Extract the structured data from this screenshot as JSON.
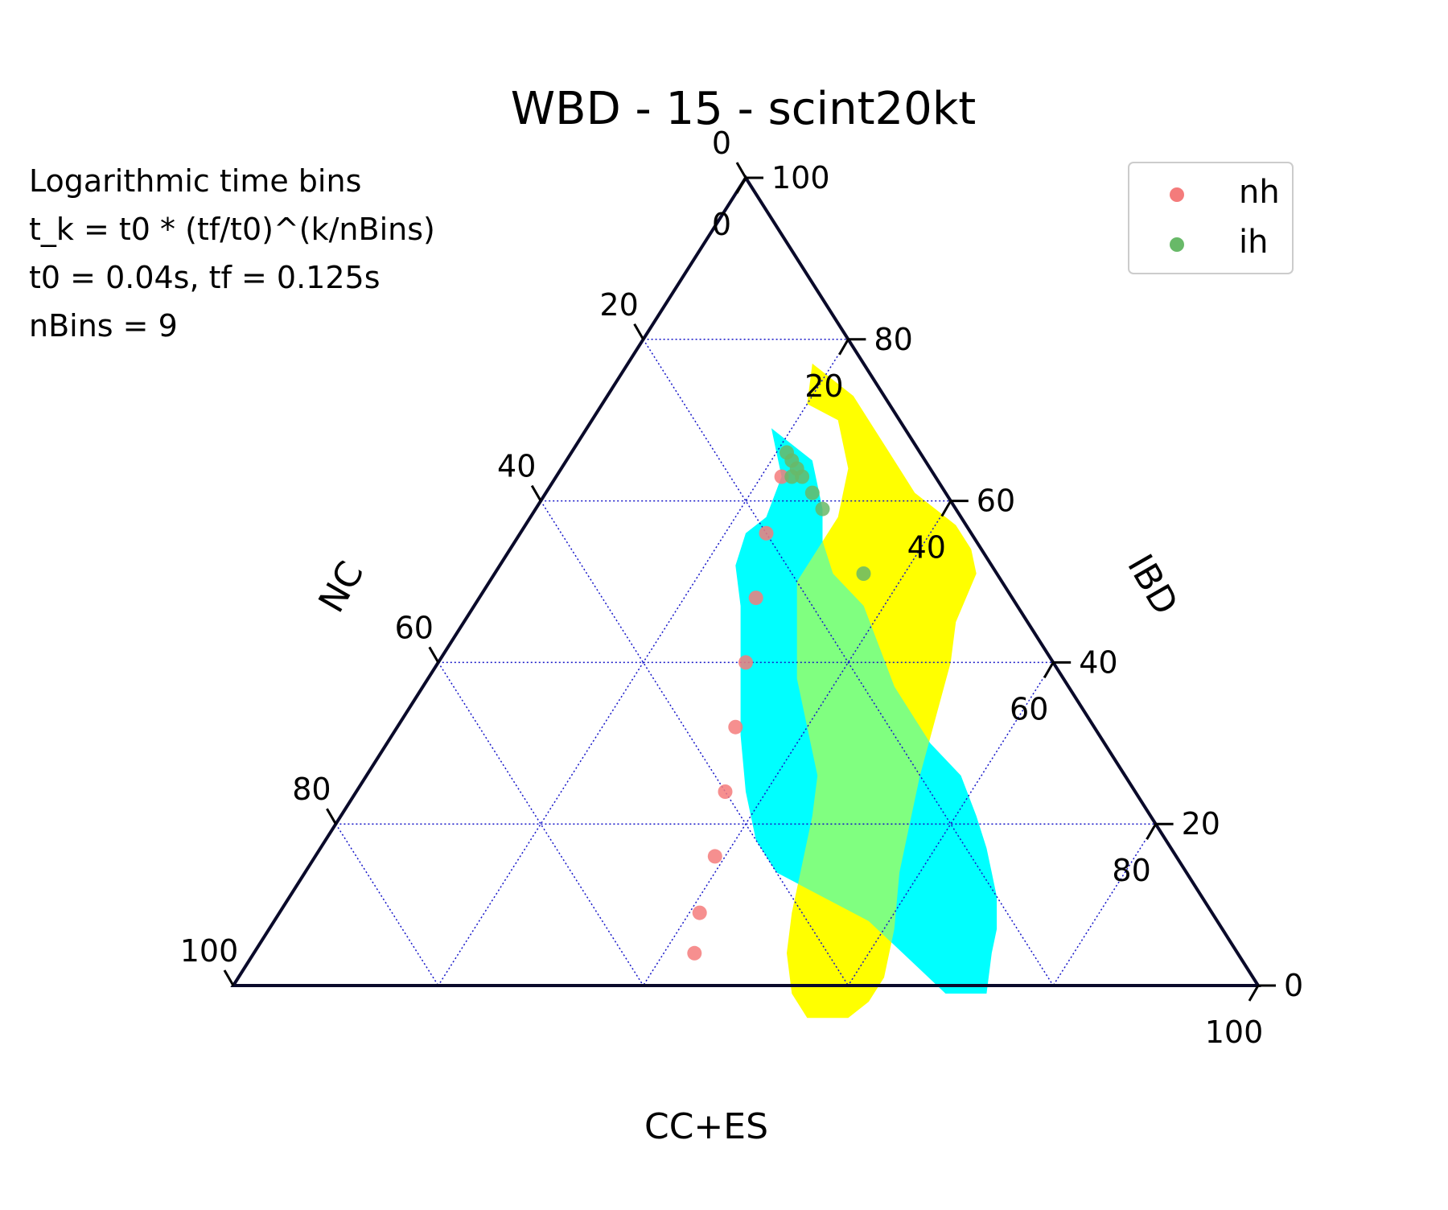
{
  "chart_data": {
    "type": "scatter",
    "subtype": "ternary",
    "title": "WBD - 15 - scint20kt",
    "axes": {
      "bottom": {
        "label": "CC+ES",
        "ticks": [
          "0",
          "20",
          "40",
          "60",
          "80",
          "100"
        ]
      },
      "left": {
        "label": "NC",
        "ticks": [
          "0",
          "20",
          "40",
          "60",
          "80",
          "100"
        ]
      },
      "right": {
        "label": "IBD",
        "ticks": [
          "0",
          "20",
          "40",
          "60",
          "80",
          "100"
        ]
      },
      "range": [
        0,
        100
      ],
      "grid": true,
      "grid_step": 20
    },
    "annotation": [
      "Logarithmic time bins",
      "t_k = t0 * (tf/t0)^(k/nBins)",
      "t0 = 0.04s, tf = 0.125s",
      "nBins = 9"
    ],
    "legend": {
      "position": "top-right",
      "entries": [
        "nh",
        "ih"
      ]
    },
    "colors": {
      "nh": "#f47b7b",
      "ih": "#68b968",
      "nh_region": "#ffff00",
      "ih_region": "#00ffff",
      "overlap_region": "#80ff80",
      "grid": "#1515c8",
      "frame": "#0a0a2a"
    },
    "series": [
      {
        "name": "nh",
        "points": [
          {
            "cc": 22,
            "nc": 15,
            "ibd": 63
          },
          {
            "cc": 24,
            "nc": 20,
            "ibd": 56
          },
          {
            "cc": 27,
            "nc": 25,
            "ibd": 48
          },
          {
            "cc": 30,
            "nc": 30,
            "ibd": 40
          },
          {
            "cc": 33,
            "nc": 35,
            "ibd": 32
          },
          {
            "cc": 36,
            "nc": 40,
            "ibd": 24
          },
          {
            "cc": 39,
            "nc": 45,
            "ibd": 16
          },
          {
            "cc": 41,
            "nc": 50,
            "ibd": 9
          },
          {
            "cc": 43,
            "nc": 53,
            "ibd": 4
          }
        ],
        "region": [
          [
            20,
            8
          ],
          [
            24,
            6
          ],
          [
            28,
            8
          ],
          [
            30,
            12
          ],
          [
            30,
            20
          ],
          [
            33,
            23
          ],
          [
            36,
            26
          ],
          [
            40,
            28
          ],
          [
            44,
            30
          ],
          [
            46,
            33
          ],
          [
            48,
            37
          ],
          [
            50,
            41
          ],
          [
            52,
            44
          ],
          [
            55,
            46
          ],
          [
            58,
            46
          ],
          [
            60,
            44
          ],
          [
            62,
            42
          ],
          [
            63,
            39
          ],
          [
            63,
            36
          ],
          [
            61,
            32
          ],
          [
            58,
            28
          ],
          [
            56,
            24
          ],
          [
            54,
            20
          ],
          [
            52,
            15
          ],
          [
            50,
            10
          ],
          [
            48,
            7
          ],
          [
            47,
            2
          ],
          [
            45,
            1
          ],
          [
            42,
            1
          ],
          [
            39,
            2
          ],
          [
            36,
            3
          ],
          [
            33,
            3
          ],
          [
            30,
            3
          ],
          [
            27,
            3
          ],
          [
            24,
            3
          ],
          [
            21,
            4
          ],
          [
            18,
            5
          ]
        ]
      },
      {
        "name": "ih",
        "points": [
          {
            "cc": 21,
            "nc": 13,
            "ibd": 66
          },
          {
            "cc": 22,
            "nc": 13,
            "ibd": 65
          },
          {
            "cc": 23,
            "nc": 14,
            "ibd": 63
          },
          {
            "cc": 23,
            "nc": 13,
            "ibd": 64
          },
          {
            "cc": 24,
            "nc": 13,
            "ibd": 63
          },
          {
            "cc": 26,
            "nc": 13,
            "ibd": 61
          },
          {
            "cc": 28,
            "nc": 13,
            "ibd": 59
          },
          {
            "cc": 36,
            "nc": 13,
            "ibd": 51
          }
        ],
        "region": [
          [
            18,
            13
          ],
          [
            24,
            11
          ],
          [
            28,
            13
          ],
          [
            30,
            15
          ],
          [
            33,
            16
          ],
          [
            38,
            15
          ],
          [
            42,
            16
          ],
          [
            46,
            17
          ],
          [
            50,
            17
          ],
          [
            53,
            17
          ],
          [
            58,
            16
          ],
          [
            62,
            17
          ],
          [
            65,
            18
          ],
          [
            67,
            19
          ],
          [
            69,
            20
          ],
          [
            71,
            22
          ],
          [
            72,
            24
          ],
          [
            74,
            27
          ],
          [
            72,
            29
          ],
          [
            70,
            31
          ],
          [
            66,
            32
          ],
          [
            62,
            33
          ],
          [
            58,
            34
          ],
          [
            54,
            36
          ],
          [
            50,
            38
          ],
          [
            46,
            40
          ],
          [
            42,
            40
          ],
          [
            38,
            38
          ],
          [
            34,
            35
          ],
          [
            30,
            31
          ],
          [
            26,
            27
          ],
          [
            23,
            25
          ],
          [
            22,
            22
          ],
          [
            23,
            19
          ],
          [
            22,
            15
          ],
          [
            20,
            14
          ]
        ]
      }
    ]
  }
}
